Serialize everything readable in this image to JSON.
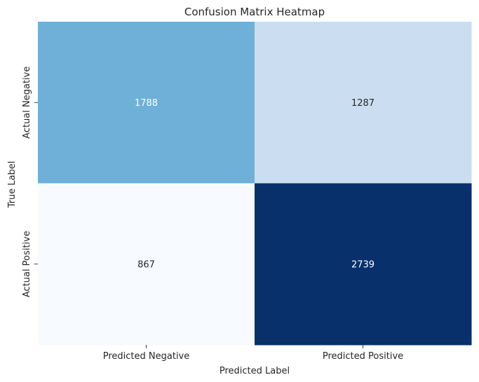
{
  "chart_data": {
    "type": "heatmap",
    "title": "Confusion Matrix Heatmap",
    "xlabel": "Predicted Label",
    "ylabel": "True Label",
    "x_categories": [
      "Predicted Negative",
      "Predicted Positive"
    ],
    "y_categories": [
      "Actual Negative",
      "Actual Positive"
    ],
    "values": [
      [
        1788,
        1287
      ],
      [
        867,
        2739
      ]
    ],
    "colormap": "Blues",
    "colorbar": false,
    "annotations": true
  }
}
